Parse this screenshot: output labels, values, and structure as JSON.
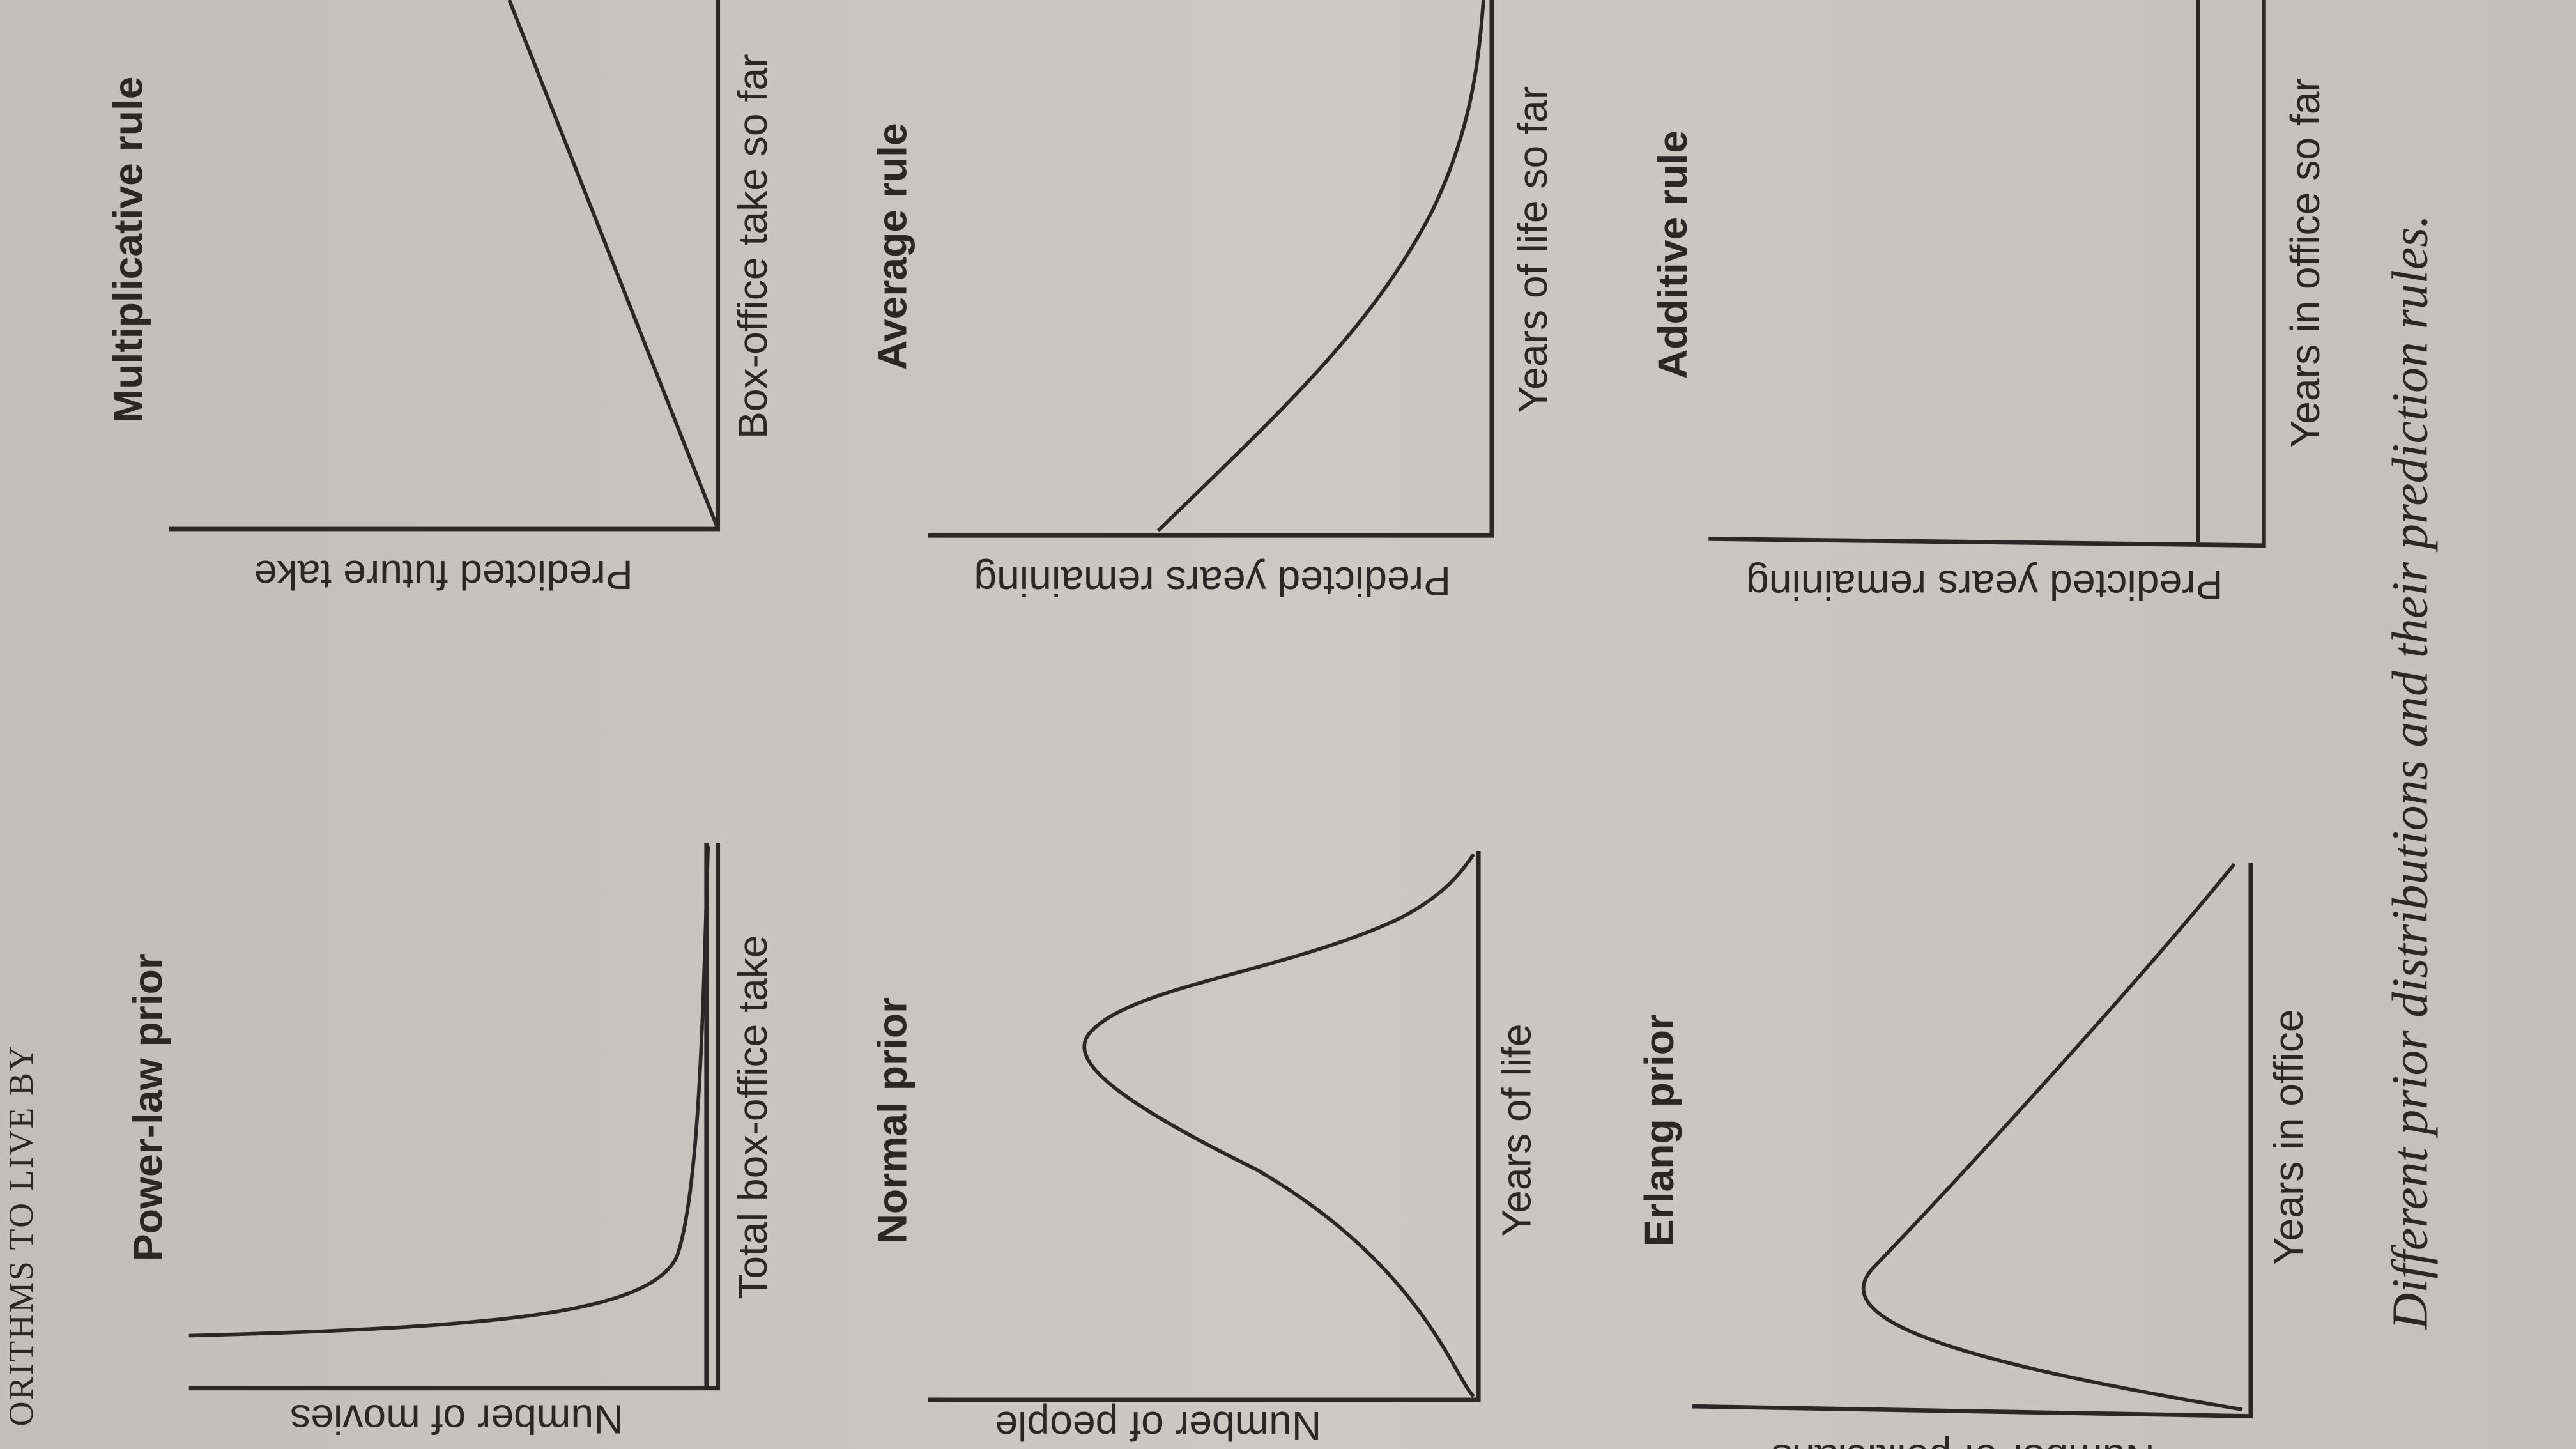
{
  "header": "ORITHMS TO LIVE BY",
  "caption": "Different prior distributions and their prediction rules.",
  "panels": [
    {
      "title": "Power-law prior",
      "xlabel": "Total box-office take",
      "ylabel": "Number of movies"
    },
    {
      "title": "Multiplicative rule",
      "xlabel": "Box-office take so far",
      "ylabel": "Predicted future take"
    },
    {
      "title": "Normal prior",
      "xlabel": "Years of life",
      "ylabel": "Number of people"
    },
    {
      "title": "Average rule",
      "xlabel": "Years of life so far",
      "ylabel": "Predicted years remaining"
    },
    {
      "title": "Erlang prior",
      "xlabel": "Years in office",
      "ylabel": "Number of politicians"
    },
    {
      "title": "Additive rule",
      "xlabel": "Years in office so far",
      "ylabel": "Predicted years remaining"
    }
  ]
}
